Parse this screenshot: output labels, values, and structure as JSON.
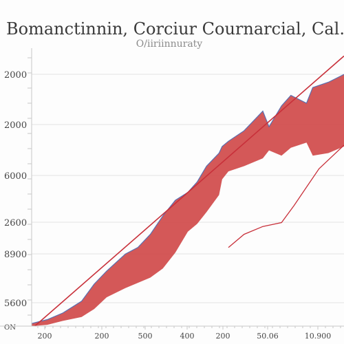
{
  "chart_data": {
    "type": "area",
    "title": "Bomanctinnin, Corciur Cournarcial, Cal.",
    "subtitle": "O/iiriinnuraty",
    "y_tick_labels": [
      "2000",
      "2000",
      "6000",
      "2600",
      "8900",
      "5600",
      "ON"
    ],
    "x_tick_labels": [
      "200",
      "200",
      "500",
      "400",
      "200",
      "50.06",
      "10.900"
    ],
    "colors": {
      "band_fill": "#d04a4a",
      "band_edge": "#5a6fb0",
      "trend_line": "#c8303a"
    },
    "series": [
      {
        "type": "band",
        "x": [
          0,
          0.5,
          1,
          1.6,
          2,
          2.4,
          3,
          3.4,
          3.8,
          4.2,
          4.6,
          5,
          5.3,
          5.6,
          6,
          6.1,
          6.3,
          6.8,
          7.4,
          7.6,
          8,
          8.3,
          8.8,
          9,
          9.5,
          10
        ],
        "upper": [
          0.1,
          0.25,
          0.5,
          0.95,
          1.6,
          2.1,
          2.75,
          3.0,
          3.5,
          4.2,
          4.8,
          5.1,
          5.5,
          6.1,
          6.6,
          6.85,
          7.05,
          7.45,
          8.2,
          7.6,
          8.4,
          8.8,
          8.5,
          9.1,
          9.3,
          9.6
        ],
        "lower": [
          0.0,
          0.05,
          0.2,
          0.35,
          0.65,
          1.1,
          1.45,
          1.65,
          1.85,
          2.2,
          2.8,
          3.6,
          3.9,
          4.35,
          5.0,
          5.6,
          5.9,
          6.1,
          6.4,
          6.7,
          6.5,
          6.8,
          7.0,
          6.5,
          6.6,
          6.85
        ]
      },
      {
        "type": "line",
        "x": [
          6.3,
          6.8,
          7.4,
          8.0,
          8.4,
          8.8,
          9.2,
          10
        ],
        "y": [
          3.0,
          3.5,
          3.8,
          3.95,
          4.6,
          5.3,
          6.0,
          6.9
        ]
      },
      {
        "type": "line",
        "x": [
          0.1,
          10
        ],
        "y": [
          0.0,
          10.3
        ]
      }
    ],
    "xlim": [
      0,
      10
    ],
    "ylim": [
      0,
      10.6
    ],
    "grid": true,
    "legend": "none"
  }
}
